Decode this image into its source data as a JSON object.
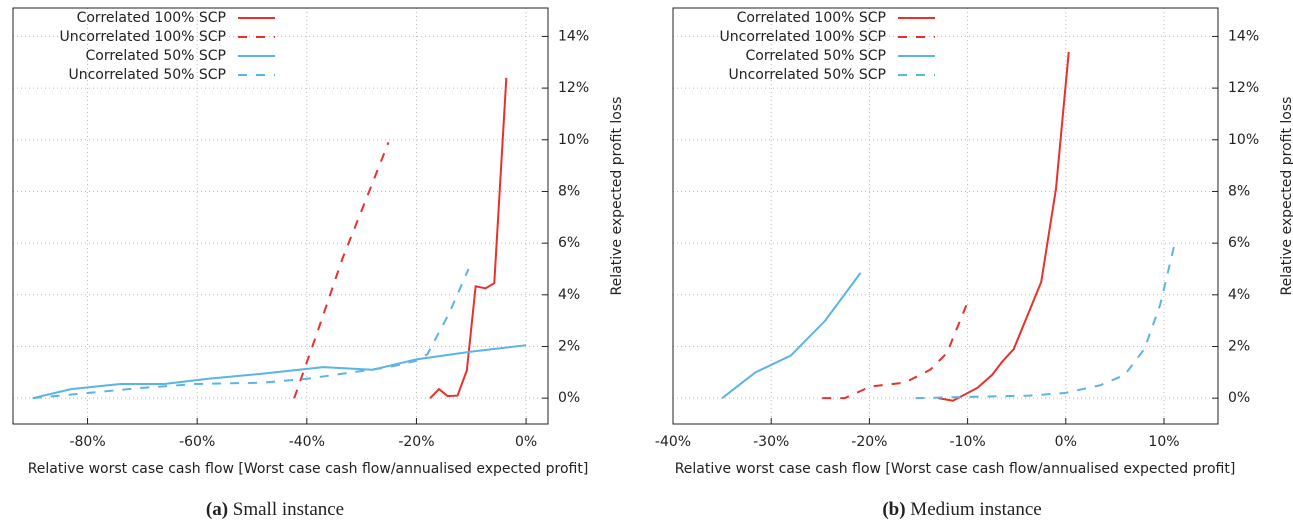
{
  "chart_data": [
    {
      "type": "line",
      "caption_label": "(a)",
      "caption": "Small instance",
      "xlabel": "Relative worst case cash flow [Worst case cash flow/annualised expected profit]",
      "ylabel": "Relative expected profit loss",
      "xlim": [
        -93.6,
        4
      ],
      "ylim": [
        -1,
        15.1
      ],
      "xticks": [
        {
          "value": -80,
          "label": "-80%"
        },
        {
          "value": -60,
          "label": "-60%"
        },
        {
          "value": -40,
          "label": "-40%"
        },
        {
          "value": -20,
          "label": "-20%"
        },
        {
          "value": 0,
          "label": "0%"
        }
      ],
      "yticks": [
        {
          "value": 0,
          "label": "0%"
        },
        {
          "value": 2,
          "label": "2%"
        },
        {
          "value": 4,
          "label": "4%"
        },
        {
          "value": 6,
          "label": "6%"
        },
        {
          "value": 8,
          "label": "8%"
        },
        {
          "value": 10,
          "label": "10%"
        },
        {
          "value": 12,
          "label": "12%"
        },
        {
          "value": 14,
          "label": "14%"
        }
      ],
      "grid": true,
      "legend": "top-left",
      "series": [
        {
          "name": "Correlated 100% SCP",
          "color": "#e8312a",
          "dash": false,
          "x": [
            -17.5,
            -15.9,
            -14.3,
            -12.5,
            -10.8,
            -9.2,
            -7.4,
            -5.8,
            -3.6
          ],
          "values": [
            0,
            0.35,
            0.08,
            0.1,
            1.08,
            4.33,
            4.25,
            4.45,
            12.4
          ]
        },
        {
          "name": "Uncorrelated 100% SCP",
          "color": "#e8312a",
          "dash": true,
          "x": [
            -42.3,
            -38,
            -33.5,
            -29,
            -25.1
          ],
          "values": [
            0,
            2.6,
            5.4,
            7.8,
            9.9
          ]
        },
        {
          "name": "Correlated 50% SCP",
          "color": "#5ab4e5",
          "dash": false,
          "x": [
            -90,
            -83,
            -74,
            -66,
            -58,
            -48,
            -37,
            -28,
            -20,
            -10,
            0
          ],
          "values": [
            0,
            0.35,
            0.55,
            0.55,
            0.75,
            0.95,
            1.2,
            1.1,
            1.5,
            1.8,
            2.05
          ]
        },
        {
          "name": "Uncorrelated 50% SCP",
          "color": "#5ab4e5",
          "dash": true,
          "x": [
            -90,
            -80,
            -70,
            -60,
            -48,
            -40,
            -30,
            -25,
            -20,
            -18,
            -14,
            -10.5
          ],
          "values": [
            0,
            0.2,
            0.4,
            0.55,
            0.6,
            0.75,
            1.05,
            1.2,
            1.45,
            1.7,
            3.3,
            5.0
          ]
        }
      ]
    },
    {
      "type": "line",
      "caption_label": "(b)",
      "caption": "Medium instance",
      "xlabel": "Relative worst case cash flow [Worst case cash flow/annualised expected profit]",
      "ylabel": "Relative expected profit loss",
      "xlim": [
        -40,
        15.5
      ],
      "ylim": [
        -1,
        15.1
      ],
      "xticks": [
        {
          "value": -40,
          "label": "-40%"
        },
        {
          "value": -30,
          "label": "-30%"
        },
        {
          "value": -20,
          "label": "-20%"
        },
        {
          "value": -10,
          "label": "-10%"
        },
        {
          "value": 0,
          "label": "0%"
        },
        {
          "value": 10,
          "label": "10%"
        }
      ],
      "yticks": [
        {
          "value": 0,
          "label": "0%"
        },
        {
          "value": 2,
          "label": "2%"
        },
        {
          "value": 4,
          "label": "4%"
        },
        {
          "value": 6,
          "label": "6%"
        },
        {
          "value": 8,
          "label": "8%"
        },
        {
          "value": 10,
          "label": "10%"
        },
        {
          "value": 12,
          "label": "12%"
        },
        {
          "value": 14,
          "label": "14%"
        }
      ],
      "grid": true,
      "legend": "top-left",
      "series": [
        {
          "name": "Correlated 100% SCP",
          "color": "#e8312a",
          "dash": false,
          "x": [
            -13,
            -11.5,
            -10.5,
            -9,
            -7.5,
            -6.5,
            -5.3,
            -2.5,
            -1,
            0.3
          ],
          "values": [
            0,
            -0.1,
            0.1,
            0.4,
            0.9,
            1.4,
            1.9,
            4.5,
            8.1,
            13.4
          ]
        },
        {
          "name": "Uncorrelated 100% SCP",
          "color": "#e8312a",
          "dash": true,
          "x": [
            -24.8,
            -22.5,
            -19.9,
            -16.4,
            -13.8,
            -12.1,
            -9.8
          ],
          "values": [
            0,
            0,
            0.45,
            0.6,
            1.1,
            1.75,
            3.9
          ]
        },
        {
          "name": "Correlated 50% SCP",
          "color": "#5ab4e5",
          "dash": false,
          "x": [
            -35,
            -31.6,
            -28,
            -24.5,
            -20.9
          ],
          "values": [
            0,
            1.0,
            1.65,
            3.0,
            4.85
          ]
        },
        {
          "name": "Uncorrelated 50% SCP",
          "color": "#5ab4e5",
          "dash": true,
          "x": [
            -15.3,
            -9.8,
            -3.7,
            -0.1,
            3.5,
            6,
            8,
            9.6,
            11.1
          ],
          "values": [
            0,
            0.05,
            0.1,
            0.2,
            0.5,
            0.9,
            1.9,
            3.6,
            6.0
          ]
        }
      ]
    }
  ]
}
